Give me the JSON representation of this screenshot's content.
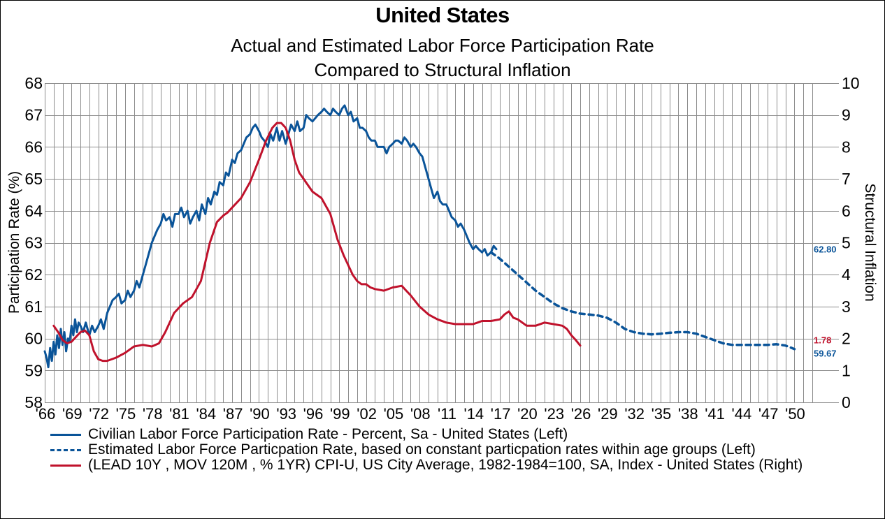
{
  "chart_data": {
    "type": "line",
    "title": "United States",
    "subtitle": [
      "Actual and Estimated Labor Force Participation Rate",
      "Compared to Structural Inflation"
    ],
    "xlabel": "",
    "ylabel_left": "Participation Rate (%)",
    "ylabel_right": "Structural Inflation",
    "ylim_left": [
      58,
      68
    ],
    "ylim_right": [
      0,
      10
    ],
    "xlim": [
      1966,
      2052
    ],
    "grid": true,
    "legend_position": "bottom",
    "y_ticks_left": [
      "58",
      "59",
      "60",
      "61",
      "62",
      "63",
      "64",
      "65",
      "66",
      "67",
      "68"
    ],
    "y_ticks_right": [
      "0",
      "1",
      "2",
      "3",
      "4",
      "5",
      "6",
      "7",
      "8",
      "9",
      "10"
    ],
    "x_ticks": [
      "'66",
      "'69",
      "'72",
      "'75",
      "'78",
      "'81",
      "'84",
      "'87",
      "'90",
      "'93",
      "'96",
      "'99",
      "'02",
      "'05",
      "'08",
      "'11",
      "'14",
      "'17",
      "'20",
      "'23",
      "'26",
      "'29",
      "'32",
      "'35",
      "'38",
      "'41",
      "'44",
      "'47",
      "'50"
    ],
    "series": [
      {
        "name": "Civilian Labor Force Participation Rate - Percent, Sa - United States  (Left)",
        "axis": "left",
        "style": "solid",
        "color": "#0a5499",
        "x": [
          1966.0,
          1966.2,
          1966.4,
          1966.6,
          1966.8,
          1967.0,
          1967.2,
          1967.4,
          1967.6,
          1967.8,
          1968.0,
          1968.2,
          1968.4,
          1968.6,
          1968.8,
          1969.0,
          1969.2,
          1969.4,
          1969.6,
          1969.8,
          1970.0,
          1970.3,
          1970.6,
          1971.0,
          1971.3,
          1971.6,
          1972.0,
          1972.3,
          1972.6,
          1973.0,
          1973.3,
          1973.6,
          1974.0,
          1974.3,
          1974.6,
          1975.0,
          1975.3,
          1975.6,
          1976.0,
          1976.3,
          1976.6,
          1977.0,
          1977.3,
          1977.6,
          1978.0,
          1978.3,
          1978.6,
          1979.0,
          1979.3,
          1979.6,
          1980.0,
          1980.3,
          1980.6,
          1981.0,
          1981.3,
          1981.6,
          1982.0,
          1982.3,
          1982.6,
          1983.0,
          1983.3,
          1983.6,
          1984.0,
          1984.3,
          1984.6,
          1985.0,
          1985.3,
          1985.6,
          1986.0,
          1986.3,
          1986.6,
          1987.0,
          1987.3,
          1987.6,
          1988.0,
          1988.3,
          1988.6,
          1989.0,
          1989.3,
          1989.6,
          1990.0,
          1990.3,
          1990.6,
          1991.0,
          1991.3,
          1991.6,
          1992.0,
          1992.3,
          1992.6,
          1993.0,
          1993.3,
          1993.6,
          1994.0,
          1994.3,
          1994.6,
          1995.0,
          1995.3,
          1995.6,
          1996.0,
          1996.3,
          1996.6,
          1997.0,
          1997.3,
          1997.6,
          1998.0,
          1998.3,
          1998.6,
          1999.0,
          1999.3,
          1999.6,
          2000.0,
          2000.3,
          2000.6,
          2001.0,
          2001.3,
          2001.6,
          2002.0,
          2002.3,
          2002.6,
          2003.0,
          2003.3,
          2003.6,
          2004.0,
          2004.3,
          2004.6,
          2005.0,
          2005.3,
          2005.6,
          2006.0,
          2006.3,
          2006.6,
          2007.0,
          2007.3,
          2007.6,
          2008.0,
          2008.3,
          2008.6,
          2009.0,
          2009.3,
          2009.6,
          2010.0,
          2010.3,
          2010.6,
          2011.0,
          2011.3,
          2011.6,
          2012.0,
          2012.3,
          2012.6,
          2013.0,
          2013.3,
          2013.6,
          2014.0,
          2014.3,
          2014.6,
          2015.0,
          2015.3,
          2015.6,
          2016.0,
          2016.3,
          2016.6
        ],
        "values": [
          59.6,
          59.4,
          59.1,
          59.7,
          59.3,
          59.9,
          59.5,
          60.1,
          59.7,
          60.3,
          59.8,
          60.2,
          59.6,
          60.0,
          59.9,
          60.4,
          60.1,
          60.6,
          60.2,
          60.5,
          60.4,
          60.2,
          60.5,
          60.1,
          60.4,
          60.2,
          60.4,
          60.6,
          60.3,
          60.8,
          61.0,
          61.2,
          61.3,
          61.4,
          61.1,
          61.2,
          61.5,
          61.3,
          61.5,
          61.8,
          61.6,
          62.0,
          62.3,
          62.6,
          63.0,
          63.2,
          63.4,
          63.6,
          63.9,
          63.7,
          63.8,
          63.5,
          63.9,
          63.9,
          64.1,
          63.8,
          64.0,
          63.6,
          63.8,
          64.0,
          63.7,
          64.2,
          63.9,
          64.4,
          64.2,
          64.6,
          64.5,
          64.9,
          64.8,
          65.2,
          65.1,
          65.6,
          65.5,
          65.8,
          65.9,
          66.1,
          66.3,
          66.4,
          66.6,
          66.7,
          66.5,
          66.3,
          66.2,
          66.0,
          66.4,
          66.2,
          66.6,
          66.2,
          66.5,
          66.1,
          66.4,
          66.7,
          66.5,
          66.8,
          66.5,
          66.6,
          67.0,
          66.9,
          66.8,
          66.9,
          67.0,
          67.1,
          67.2,
          67.1,
          67.0,
          67.2,
          67.1,
          67.0,
          67.2,
          67.3,
          67.0,
          67.1,
          66.8,
          66.9,
          66.6,
          66.6,
          66.5,
          66.3,
          66.2,
          66.2,
          66.0,
          66.0,
          66.0,
          65.8,
          66.0,
          66.1,
          66.2,
          66.2,
          66.1,
          66.3,
          66.2,
          66.0,
          66.1,
          66.0,
          65.8,
          65.7,
          65.4,
          65.0,
          64.7,
          64.4,
          64.6,
          64.3,
          64.2,
          64.2,
          64.0,
          63.8,
          63.7,
          63.5,
          63.6,
          63.4,
          63.2,
          63.0,
          62.8,
          62.9,
          62.8,
          62.7,
          62.8,
          62.6,
          62.7,
          62.9,
          62.8
        ]
      },
      {
        "name": "Estimated Labor Force Particpation Rate, based on constant particpation rates within age groups (Left)",
        "axis": "left",
        "style": "dashed",
        "color": "#0a5499",
        "x": [
          2016.0,
          2017,
          2018,
          2019,
          2020,
          2021,
          2022,
          2023,
          2024,
          2025,
          2026,
          2027,
          2028,
          2029,
          2030,
          2031,
          2032,
          2033,
          2034,
          2035,
          2036,
          2037,
          2038,
          2039,
          2040,
          2041,
          2042,
          2043,
          2044,
          2045,
          2046,
          2047,
          2048,
          2049,
          2050
        ],
        "values": [
          62.7,
          62.5,
          62.25,
          62.0,
          61.75,
          61.5,
          61.3,
          61.1,
          60.95,
          60.85,
          60.78,
          60.75,
          60.72,
          60.65,
          60.5,
          60.3,
          60.2,
          60.15,
          60.13,
          60.15,
          60.18,
          60.2,
          60.2,
          60.15,
          60.05,
          59.95,
          59.85,
          59.8,
          59.8,
          59.8,
          59.8,
          59.8,
          59.82,
          59.78,
          59.67
        ]
      },
      {
        "name": "(LEAD 10Y , MOV 120M , % 1YR) CPI-U, US City Average, 1982-1984=100, SA, Index - United States  (Right)",
        "axis": "right",
        "style": "solid",
        "color": "#c0122c",
        "x": [
          1967.0,
          1967.5,
          1968.0,
          1968.5,
          1969.0,
          1969.5,
          1970.0,
          1970.5,
          1971.0,
          1971.5,
          1972.0,
          1972.5,
          1973.0,
          1974.0,
          1975.0,
          1976.0,
          1977.0,
          1978.0,
          1978.8,
          1979.5,
          1980.5,
          1981.5,
          1982.5,
          1983.5,
          1984.5,
          1985.3,
          1986.0,
          1986.5,
          1987.0,
          1988.0,
          1989.0,
          1990.0,
          1990.8,
          1991.5,
          1992.0,
          1992.5,
          1993.0,
          1993.5,
          1994.0,
          1994.5,
          1995.0,
          1996.0,
          1997.0,
          1998.0,
          1998.8,
          1999.5,
          2000.0,
          2000.5,
          2001.0,
          2001.5,
          2002.0,
          2002.5,
          2003.0,
          2004.0,
          2005.0,
          2006.0,
          2006.5,
          2007.0,
          2008.0,
          2009.0,
          2010.0,
          2011.0,
          2012.0,
          2013.0,
          2014.0,
          2014.5,
          2015.0,
          2016.0,
          2017.0,
          2017.5,
          2018.0,
          2018.5,
          2019.0,
          2020.0,
          2021.0,
          2022.0,
          2023.0,
          2024.0,
          2024.5,
          2025.0,
          2025.5,
          2026.0
        ],
        "values": [
          2.4,
          2.2,
          1.95,
          1.85,
          1.9,
          2.05,
          2.2,
          2.25,
          2.1,
          1.6,
          1.35,
          1.3,
          1.3,
          1.4,
          1.55,
          1.75,
          1.8,
          1.75,
          1.85,
          2.2,
          2.8,
          3.1,
          3.3,
          3.8,
          5.0,
          5.65,
          5.85,
          5.95,
          6.1,
          6.4,
          6.9,
          7.6,
          8.2,
          8.6,
          8.75,
          8.75,
          8.6,
          8.2,
          7.6,
          7.2,
          7.0,
          6.6,
          6.4,
          5.9,
          5.1,
          4.6,
          4.3,
          4.0,
          3.8,
          3.7,
          3.7,
          3.6,
          3.55,
          3.5,
          3.6,
          3.65,
          3.5,
          3.35,
          3.0,
          2.75,
          2.6,
          2.5,
          2.45,
          2.45,
          2.45,
          2.5,
          2.55,
          2.55,
          2.6,
          2.75,
          2.85,
          2.65,
          2.6,
          2.4,
          2.4,
          2.5,
          2.45,
          2.4,
          2.3,
          2.1,
          1.95,
          1.78
        ]
      }
    ],
    "end_labels": [
      {
        "series": 0,
        "text": "62.80",
        "color": "#0a5499",
        "value": 62.8,
        "axis": "left"
      },
      {
        "series": 2,
        "text": "1.78",
        "color": "#c0122c",
        "value": 1.78,
        "axis": "right"
      },
      {
        "series": 1,
        "text": "59.67",
        "color": "#0a5499",
        "value": 59.67,
        "axis": "left"
      }
    ]
  },
  "legend": [
    {
      "label": "Civilian Labor Force Participation Rate - Percent, Sa - United States  (Left)",
      "style": "solid",
      "color": "#0a5499"
    },
    {
      "label": "Estimated Labor Force Particpation Rate, based on constant particpation rates within age groups (Left)",
      "style": "dashed",
      "color": "#0a5499"
    },
    {
      "label": "(LEAD 10Y , MOV 120M , % 1YR) CPI-U, US City Average, 1982-1984=100, SA, Index - United States  (Right)",
      "style": "solid",
      "color": "#c0122c"
    }
  ],
  "colors": {
    "grid": "#8c8c8c",
    "blue": "#0a5499",
    "red": "#c0122c"
  }
}
